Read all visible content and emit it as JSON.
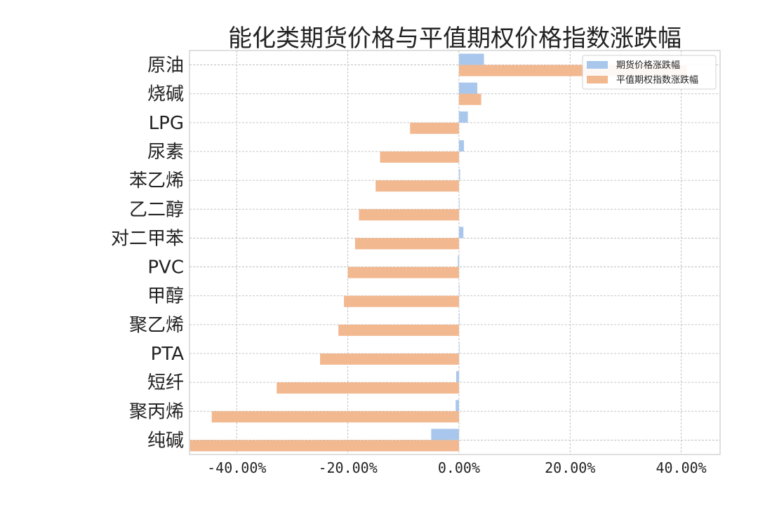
{
  "chart_data": {
    "type": "bar",
    "orientation": "horizontal",
    "title": "能化类期货价格与平值期权价格指数涨跌幅",
    "categories": [
      "原油",
      "烧碱",
      "LPG",
      "尿素",
      "苯乙烯",
      "乙二醇",
      "对二甲苯",
      "PVC",
      "甲醇",
      "聚乙烯",
      "PTA",
      "短纤",
      "聚丙烯",
      "纯碱"
    ],
    "series": [
      {
        "name": "期货价格涨跌幅",
        "color": "#a9c7ec",
        "values": [
          4.5,
          3.3,
          1.6,
          0.9,
          0.2,
          0.1,
          0.8,
          -0.2,
          0.1,
          0.1,
          0.1,
          -0.5,
          -0.6,
          -5.0
        ]
      },
      {
        "name": "平值期权指数涨跌幅",
        "color": "#f2b88f",
        "values": [
          41.0,
          4.0,
          -8.8,
          -14.2,
          -15.0,
          -18.0,
          -18.7,
          -20.0,
          -20.7,
          -21.7,
          -25.0,
          -32.8,
          -44.5,
          -48.4
        ]
      }
    ],
    "xlim": [
      -48.5,
      47.0
    ],
    "xticks": [
      "-40.00%",
      "-20.00%",
      "0.00%",
      "20.00%",
      "40.00%"
    ],
    "xtick_values": [
      -40,
      -20,
      0,
      20,
      40
    ],
    "xlabel": "",
    "ylabel": "",
    "grid": true,
    "legend_position": "top-right"
  }
}
